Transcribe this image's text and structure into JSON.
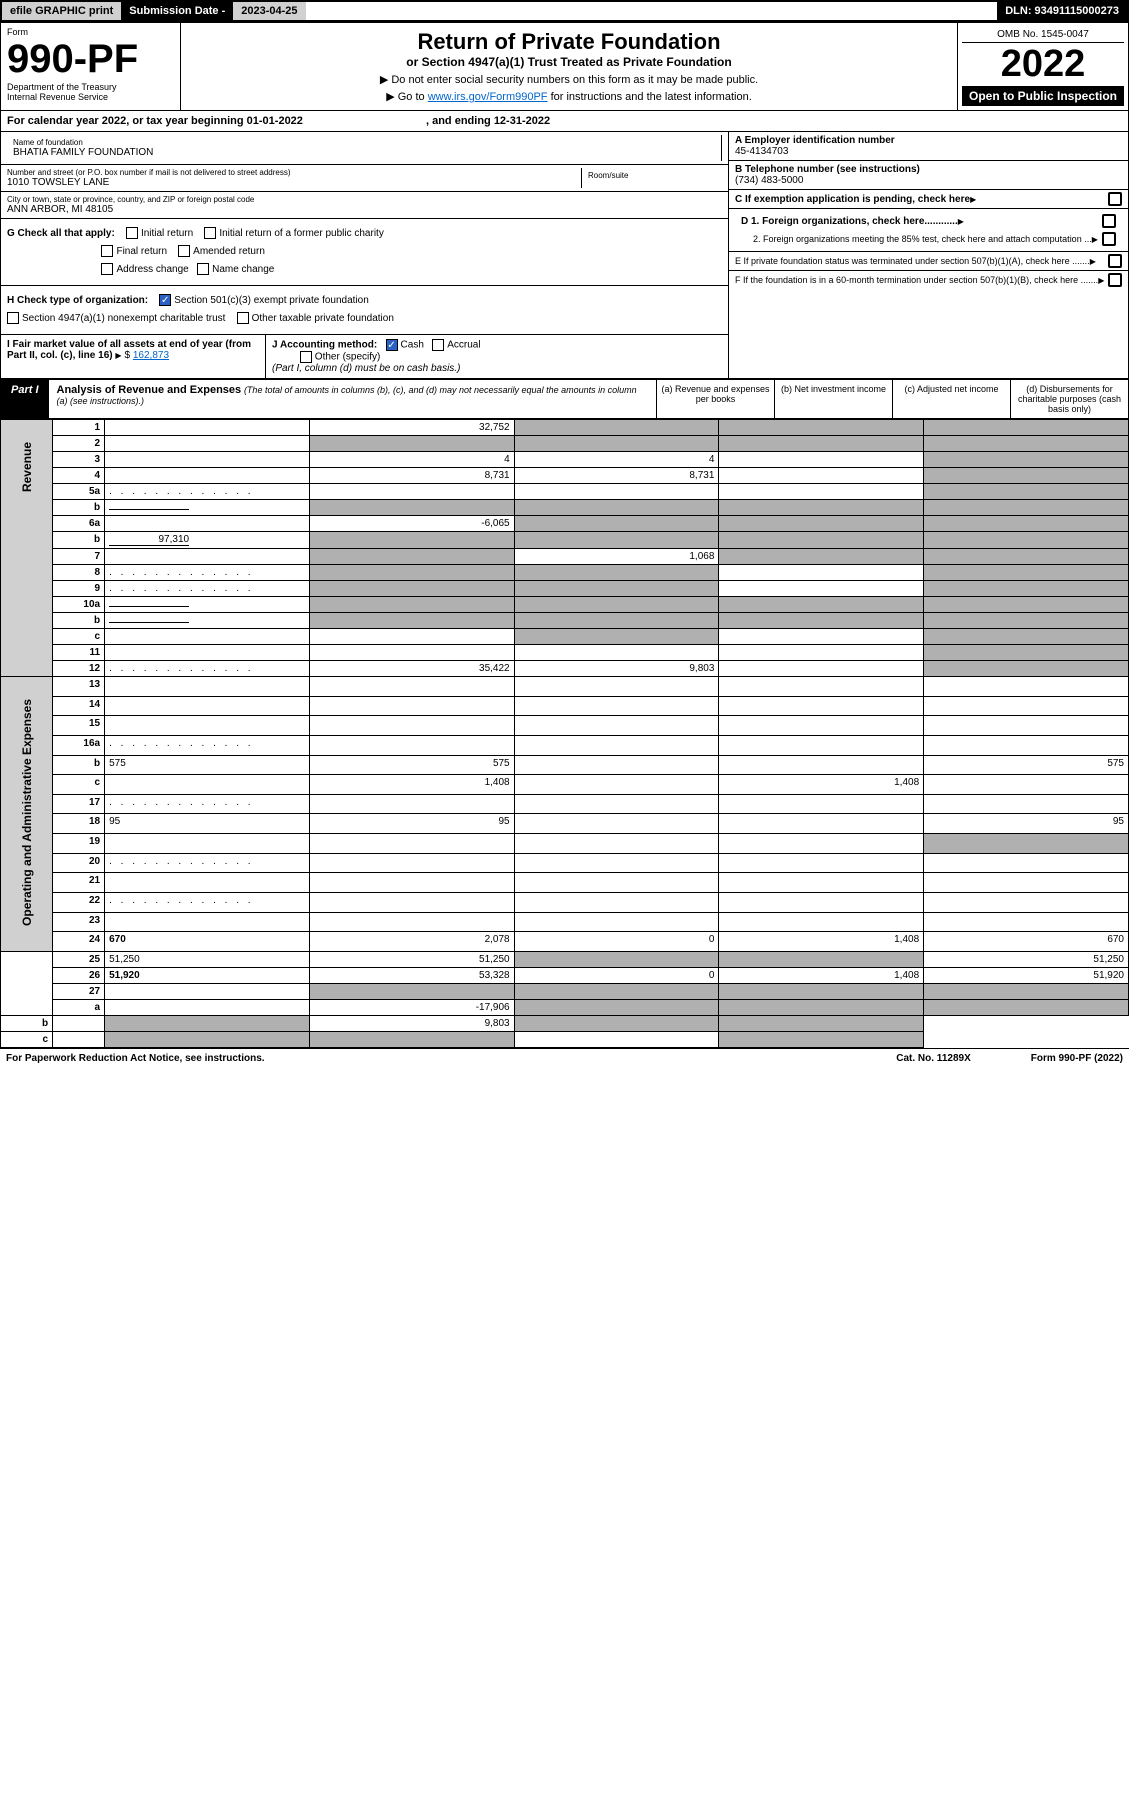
{
  "top": {
    "efile": "efile GRAPHIC print",
    "subdate_label": "Submission Date - ",
    "subdate": "2023-04-25",
    "dln": "DLN: 93491115000273"
  },
  "header": {
    "form": "Form",
    "formnum": "990-PF",
    "dept": "Department of the Treasury",
    "irs": "Internal Revenue Service",
    "title": "Return of Private Foundation",
    "subtitle": "or Section 4947(a)(1) Trust Treated as Private Foundation",
    "note1": "▶ Do not enter social security numbers on this form as it may be made public.",
    "note2_pre": "▶ Go to ",
    "note2_link": "www.irs.gov/Form990PF",
    "note2_post": " for instructions and the latest information.",
    "omb": "OMB No. 1545-0047",
    "year": "2022",
    "open": "Open to Public Inspection"
  },
  "calyear": "For calendar year 2022, or tax year beginning 01-01-2022",
  "calyear_end": ", and ending 12-31-2022",
  "info": {
    "name_label": "Name of foundation",
    "name": "BHATIA FAMILY FOUNDATION",
    "addr_label": "Number and street (or P.O. box number if mail is not delivered to street address)",
    "addr": "1010 TOWSLEY LANE",
    "room_label": "Room/suite",
    "city_label": "City or town, state or province, country, and ZIP or foreign postal code",
    "city": "ANN ARBOR, MI  48105",
    "ein_label": "A Employer identification number",
    "ein": "45-4134703",
    "phone_label": "B Telephone number (see instructions)",
    "phone": "(734) 483-5000",
    "c": "C If exemption application is pending, check here",
    "d1": "D 1. Foreign organizations, check here............",
    "d2": "2. Foreign organizations meeting the 85% test, check here and attach computation ...",
    "e": "E  If private foundation status was terminated under section 507(b)(1)(A), check here .......",
    "f": "F  If the foundation is in a 60-month termination under section 507(b)(1)(B), check here ......."
  },
  "g": {
    "label": "G Check all that apply:",
    "opts": [
      "Initial return",
      "Initial return of a former public charity",
      "Final return",
      "Amended return",
      "Address change",
      "Name change"
    ]
  },
  "h": {
    "label": "H Check type of organization:",
    "opt1": "Section 501(c)(3) exempt private foundation",
    "opt2": "Section 4947(a)(1) nonexempt charitable trust",
    "opt3": "Other taxable private foundation"
  },
  "i": {
    "label": "I Fair market value of all assets at end of year (from Part II, col. (c), line 16)",
    "val": "162,873"
  },
  "j": {
    "label": "J Accounting method:",
    "cash": "Cash",
    "accrual": "Accrual",
    "other": "Other (specify)",
    "note": "(Part I, column (d) must be on cash basis.)"
  },
  "part1": {
    "label": "Part I",
    "title": "Analysis of Revenue and Expenses",
    "note": "(The total of amounts in columns (b), (c), and (d) may not necessarily equal the amounts in column (a) (see instructions).)",
    "cols": [
      "(a)   Revenue and expenses per books",
      "(b)   Net investment income",
      "(c)   Adjusted net income",
      "(d)  Disbursements for charitable purposes (cash basis only)"
    ]
  },
  "sides": {
    "rev": "Revenue",
    "exp": "Operating and Administrative Expenses"
  },
  "rows": [
    {
      "n": "1",
      "d": "",
      "a": "32,752",
      "b": "",
      "c": "",
      "sb": 1,
      "sc": 1,
      "sd": 1
    },
    {
      "n": "2",
      "d": "",
      "a": "",
      "b": "",
      "c": "",
      "sa": 1,
      "sb": 1,
      "sc": 1,
      "sd": 1,
      "nob": 1
    },
    {
      "n": "3",
      "d": "",
      "a": "4",
      "b": "4",
      "c": "",
      "sd": 1
    },
    {
      "n": "4",
      "d": "",
      "a": "8,731",
      "b": "8,731",
      "c": "",
      "sd": 1
    },
    {
      "n": "5a",
      "d": "",
      "a": "",
      "b": "",
      "c": "",
      "sd": 1,
      "dots": 1
    },
    {
      "n": "b",
      "d": "",
      "a": "",
      "b": "",
      "c": "",
      "sa": 1,
      "sb": 1,
      "sc": 1,
      "sd": 1,
      "inline": 1
    },
    {
      "n": "6a",
      "d": "",
      "a": "-6,065",
      "b": "",
      "c": "",
      "sb": 1,
      "sc": 1,
      "sd": 1
    },
    {
      "n": "b",
      "d": "",
      "a": "",
      "b": "",
      "c": "",
      "sa": 1,
      "sb": 1,
      "sc": 1,
      "sd": 1,
      "inline": 1,
      "inlineval": "97,310"
    },
    {
      "n": "7",
      "d": "",
      "a": "",
      "b": "1,068",
      "c": "",
      "sa": 1,
      "sc": 1,
      "sd": 1
    },
    {
      "n": "8",
      "d": "",
      "a": "",
      "b": "",
      "c": "",
      "sa": 1,
      "sb": 1,
      "sd": 1,
      "dots": 1
    },
    {
      "n": "9",
      "d": "",
      "a": "",
      "b": "",
      "c": "",
      "sa": 1,
      "sb": 1,
      "sd": 1,
      "dots": 1
    },
    {
      "n": "10a",
      "d": "",
      "a": "",
      "b": "",
      "c": "",
      "sa": 1,
      "sb": 1,
      "sc": 1,
      "sd": 1,
      "inline": 1
    },
    {
      "n": "b",
      "d": "",
      "a": "",
      "b": "",
      "c": "",
      "sa": 1,
      "sb": 1,
      "sc": 1,
      "sd": 1,
      "inline": 1
    },
    {
      "n": "c",
      "d": "",
      "a": "",
      "b": "",
      "c": "",
      "sb": 1,
      "sd": 1
    },
    {
      "n": "11",
      "d": "",
      "a": "",
      "b": "",
      "c": "",
      "sd": 1
    },
    {
      "n": "12",
      "d": "",
      "a": "35,422",
      "b": "9,803",
      "c": "",
      "sd": 1,
      "bold": 1,
      "dots": 1
    },
    {
      "n": "13",
      "d": "",
      "a": "",
      "b": "",
      "c": ""
    },
    {
      "n": "14",
      "d": "",
      "a": "",
      "b": "",
      "c": ""
    },
    {
      "n": "15",
      "d": "",
      "a": "",
      "b": "",
      "c": ""
    },
    {
      "n": "16a",
      "d": "",
      "a": "",
      "b": "",
      "c": "",
      "dots": 1
    },
    {
      "n": "b",
      "d": "575",
      "a": "575",
      "b": "",
      "c": ""
    },
    {
      "n": "c",
      "d": "",
      "a": "1,408",
      "b": "",
      "c": "1,408"
    },
    {
      "n": "17",
      "d": "",
      "a": "",
      "b": "",
      "c": "",
      "dots": 1
    },
    {
      "n": "18",
      "d": "95",
      "a": "95",
      "b": "",
      "c": ""
    },
    {
      "n": "19",
      "d": "",
      "a": "",
      "b": "",
      "c": "",
      "sd": 1
    },
    {
      "n": "20",
      "d": "",
      "a": "",
      "b": "",
      "c": "",
      "dots": 1
    },
    {
      "n": "21",
      "d": "",
      "a": "",
      "b": "",
      "c": ""
    },
    {
      "n": "22",
      "d": "",
      "a": "",
      "b": "",
      "c": "",
      "dots": 1
    },
    {
      "n": "23",
      "d": "",
      "a": "",
      "b": "",
      "c": ""
    },
    {
      "n": "24",
      "d": "670",
      "a": "2,078",
      "b": "0",
      "c": "1,408",
      "bold": 1
    },
    {
      "n": "25",
      "d": "51,250",
      "a": "51,250",
      "b": "",
      "c": "",
      "sb": 1,
      "sc": 1
    },
    {
      "n": "26",
      "d": "51,920",
      "a": "53,328",
      "b": "0",
      "c": "1,408",
      "bold": 1
    },
    {
      "n": "27",
      "d": "",
      "a": "",
      "b": "",
      "c": "",
      "sa": 1,
      "sb": 1,
      "sc": 1,
      "sd": 1
    },
    {
      "n": "a",
      "d": "",
      "a": "-17,906",
      "b": "",
      "c": "",
      "sb": 1,
      "sc": 1,
      "sd": 1,
      "bold": 1
    },
    {
      "n": "b",
      "d": "",
      "a": "",
      "b": "9,803",
      "c": "",
      "sa": 1,
      "sc": 1,
      "sd": 1,
      "bold": 1
    },
    {
      "n": "c",
      "d": "",
      "a": "",
      "b": "",
      "c": "",
      "sa": 1,
      "sb": 1,
      "sd": 1,
      "bold": 1
    }
  ],
  "footer": {
    "left": "For Paperwork Reduction Act Notice, see instructions.",
    "mid": "Cat. No. 11289X",
    "right": "Form 990-PF (2022)"
  }
}
